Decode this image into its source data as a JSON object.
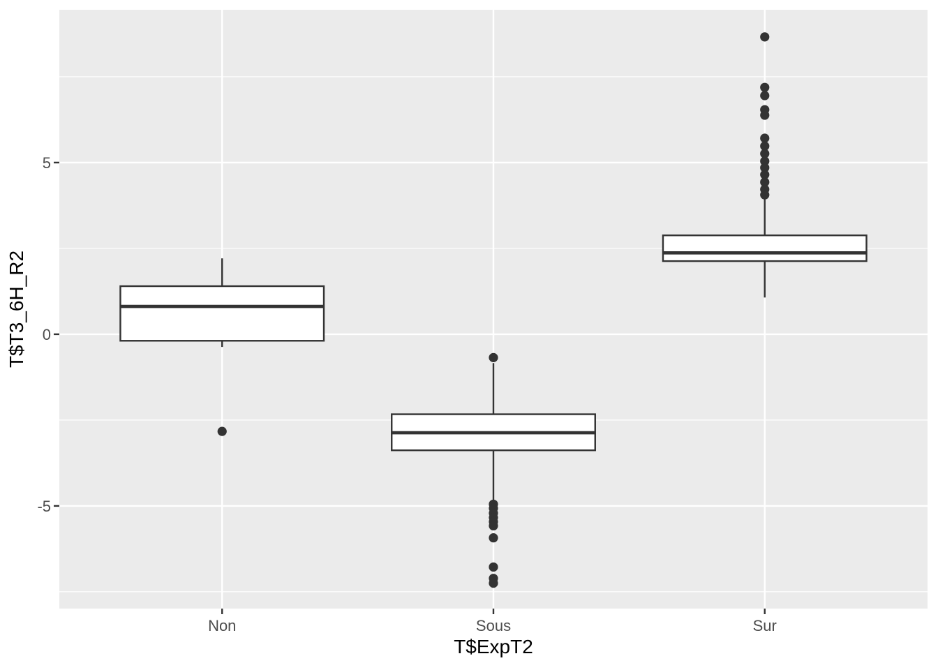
{
  "figure": {
    "background": "#FFFFFF"
  },
  "chart_data": {
    "type": "boxplot",
    "title": "",
    "xlabel": "T$ExpT2",
    "ylabel": "T$T3_6H_R2",
    "categories": [
      "Non",
      "Sous",
      "Sur"
    ],
    "ylim": [
      -7.99,
      9.45
    ],
    "y_major_ticks": [
      5,
      0,
      -5
    ],
    "y_tick_labels": [
      "5",
      "0",
      "-5"
    ],
    "y_minor_ticks": [
      7.5,
      2.5,
      -2.5,
      -7.5
    ],
    "grid": "major-and-minor",
    "legend": "none",
    "series": [
      {
        "category": "Non",
        "whisker_high": 2.21,
        "q3": 1.4,
        "median": 0.81,
        "q1": -0.19,
        "whisker_low": -0.37,
        "outliers": [
          -2.83
        ]
      },
      {
        "category": "Sous",
        "whisker_high": -0.84,
        "q3": -2.33,
        "median": -2.87,
        "q1": -3.38,
        "whisker_low": -4.87,
        "outliers": [
          -0.68,
          -4.95,
          -5.07,
          -5.21,
          -5.34,
          -5.46,
          -5.58,
          -5.93,
          -6.78,
          -7.11,
          -7.25
        ]
      },
      {
        "category": "Sur",
        "whisker_high": 3.98,
        "q3": 2.88,
        "median": 2.37,
        "q1": 2.13,
        "whisker_low": 1.07,
        "outliers": [
          8.66,
          7.19,
          6.95,
          6.54,
          6.38,
          5.71,
          5.48,
          5.26,
          5.04,
          4.85,
          4.65,
          4.43,
          4.22,
          4.06
        ]
      }
    ],
    "style": {
      "panel_bg": "#EBEBEB",
      "grid_color": "#FFFFFF",
      "box_stroke": "#333333",
      "box_fill": "#FFFFFF",
      "point_color": "#333333",
      "tick_mark_color": "#333333",
      "tick_label_color": "#4D4D4D",
      "axis_title_color": "#000000"
    }
  }
}
